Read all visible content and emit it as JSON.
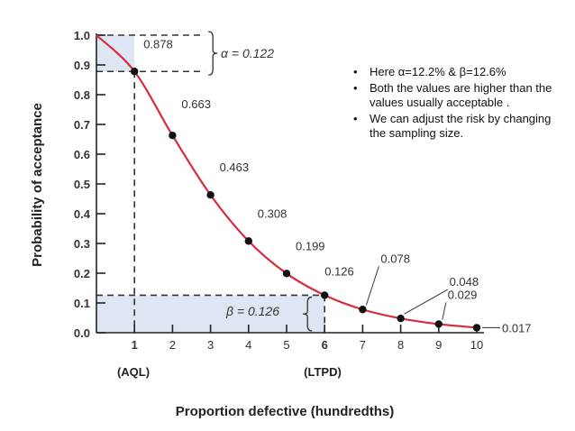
{
  "chart_data": {
    "type": "line",
    "ylabel": "Probability of acceptance",
    "xlabel": "Proportion defective (hundredths)",
    "xlim": [
      0,
      10
    ],
    "ylim": [
      0,
      1.0
    ],
    "x_ticks": [
      "1",
      "2",
      "3",
      "4",
      "5",
      "6",
      "7",
      "8",
      "9",
      "10"
    ],
    "y_ticks": [
      "0.0",
      "0.1",
      "0.2",
      "0.3",
      "0.4",
      "0.5",
      "0.6",
      "0.7",
      "0.8",
      "0.9",
      "1.0"
    ],
    "series": [
      {
        "color": "#d92b3c",
        "points": [
          {
            "x": 1,
            "y": 0.878,
            "label": "0.878"
          },
          {
            "x": 2,
            "y": 0.663,
            "label": "0.663"
          },
          {
            "x": 3,
            "y": 0.463,
            "label": "0.463"
          },
          {
            "x": 4,
            "y": 0.308,
            "label": "0.308"
          },
          {
            "x": 5,
            "y": 0.199,
            "label": "0.199"
          },
          {
            "x": 6,
            "y": 0.126,
            "label": "0.126"
          },
          {
            "x": 7,
            "y": 0.078,
            "label": "0.078"
          },
          {
            "x": 8,
            "y": 0.048,
            "label": "0.048"
          },
          {
            "x": 9,
            "y": 0.029,
            "label": "0.029"
          },
          {
            "x": 10,
            "y": 0.017,
            "label": "0.017"
          }
        ]
      }
    ],
    "annotations": {
      "aql_label": "(AQL)",
      "ltpd_label": "(LTPD)",
      "alpha_label": "α = 0.122",
      "beta_label": "β = 0.126"
    },
    "region_color": "#dde6f2",
    "axis_color": "#222222"
  },
  "notes": [
    "Here α=12.2% & β=12.6%",
    "Both the values are higher than the values usually acceptable .",
    "We can adjust the risk by changing the sampling size."
  ]
}
